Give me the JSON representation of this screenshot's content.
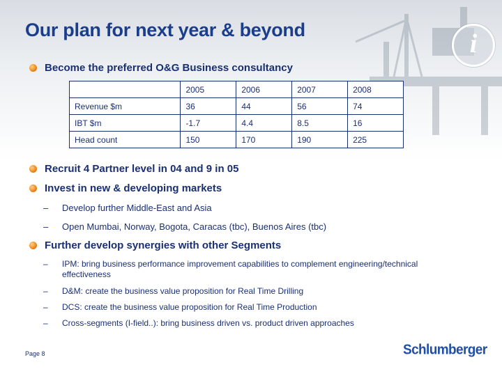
{
  "slide": {
    "title": "Our plan for next year & beyond",
    "page_label": "Page 8",
    "logo_text": "Schlumberger"
  },
  "bullets": [
    {
      "text": "Become the preferred O&G Business consultancy"
    },
    {
      "text": "Recruit 4 Partner level in 04 and 9 in 05"
    },
    {
      "text": "Invest in new & developing markets",
      "subitems": [
        "Develop further Middle-East and Asia",
        "Open Mumbai, Norway, Bogota, Caracas (tbc), Buenos Aires (tbc)"
      ]
    },
    {
      "text": "Further develop synergies with other Segments",
      "subitems": [
        "IPM: bring business performance improvement capabilities to complement engineering/technical effectiveness",
        "D&M: create the business value proposition for Real Time Drilling",
        "DCS: create the business value proposition for Real Time Production",
        "Cross-segments (I-field..): bring business driven vs. product driven approaches"
      ]
    }
  ],
  "table": {
    "headers": [
      "",
      "2005",
      "2006",
      "2007",
      "2008"
    ],
    "rows": [
      [
        "Revenue $m",
        "36",
        "44",
        "56",
        "74"
      ],
      [
        "IBT $m",
        "-1.7",
        "4.4",
        "8.5",
        "16"
      ],
      [
        "Head count",
        "150",
        "170",
        "190",
        "225"
      ]
    ]
  },
  "colors": {
    "title": "#1a3e8c",
    "text": "#1a2f73",
    "bullet": "#f28c1f",
    "logo": "#1f4fa8"
  },
  "icons": {
    "bullet_marker": "orange-dot-icon",
    "info": "info-icon"
  }
}
